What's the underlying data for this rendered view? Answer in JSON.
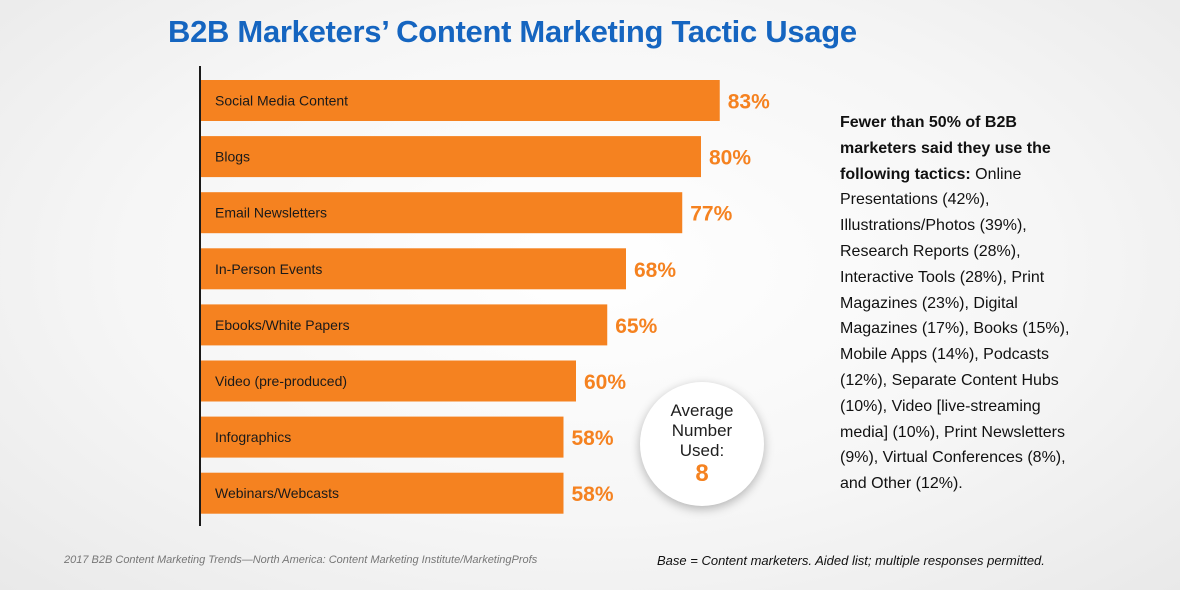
{
  "title": "B2B Marketers’ Content Marketing Tactic Usage",
  "chart_data": {
    "type": "bar",
    "orientation": "horizontal",
    "title": "B2B Marketers’ Content Marketing Tactic Usage",
    "categories": [
      "Social Media Content",
      "Blogs",
      "Email Newsletters",
      "In-Person Events",
      "Ebooks/White Papers",
      "Video (pre-produced)",
      "Infographics",
      "Webinars/Webcasts"
    ],
    "values": [
      83,
      80,
      77,
      68,
      65,
      60,
      58,
      58
    ],
    "value_labels": [
      "83%",
      "80%",
      "77%",
      "68%",
      "65%",
      "60%",
      "58%",
      "58%"
    ],
    "unit": "%",
    "xlim": [
      0,
      100
    ],
    "bar_color": "#f58220",
    "grid": false
  },
  "badge": {
    "label": "Average\nNumber\nUsed:",
    "value": "8"
  },
  "side_note": {
    "heading": "Fewer than 50% of B2B marketers said they use the following tactics:",
    "body": "Online Presentations (42%), Illustrations/Photos (39%), Research Reports (28%), Interactive Tools (28%), Print Magazines (23%), Digital Magazines (17%), Books (15%), Mobile Apps (14%), Podcasts (12%), Separate Content Hubs (10%), Video [live-streaming media] (10%), Print Newsletters (9%), Virtual Conferences (8%), and Other (12%)."
  },
  "footer": {
    "source": "2017 B2B Content Marketing Trends—North America: Content Marketing Institute/MarketingProfs",
    "base": "Base = Content marketers. Aided list; multiple responses permitted."
  },
  "colors": {
    "title": "#1565c0",
    "accent": "#f58220"
  }
}
